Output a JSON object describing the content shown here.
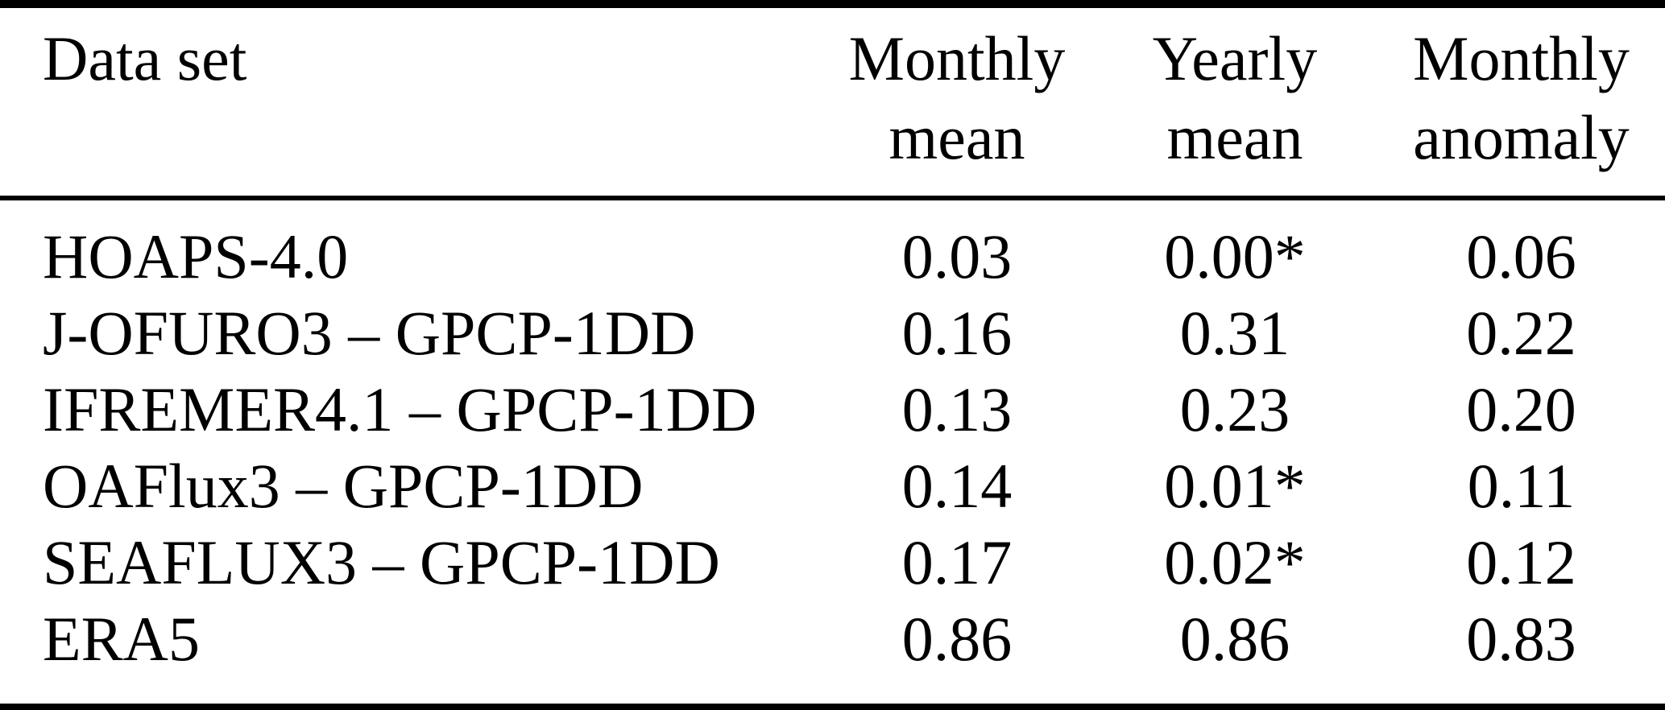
{
  "table": {
    "header": {
      "dataset": "Data set",
      "monthly_mean": [
        "Monthly",
        "mean"
      ],
      "yearly_mean": [
        "Yearly",
        "mean"
      ],
      "monthly_anomaly": [
        "Monthly",
        "anomaly"
      ]
    },
    "rows": [
      {
        "dataset": "HOAPS-4.0",
        "monthly_mean": "0.03",
        "yearly_mean": "0.00",
        "yearly_flag": "*",
        "monthly_anomaly": "0.06"
      },
      {
        "dataset": "J-OFURO3 – GPCP-1DD",
        "monthly_mean": "0.16",
        "yearly_mean": "0.31",
        "yearly_flag": "",
        "monthly_anomaly": "0.22"
      },
      {
        "dataset": "IFREMER4.1 – GPCP-1DD",
        "monthly_mean": "0.13",
        "yearly_mean": "0.23",
        "yearly_flag": "",
        "monthly_anomaly": "0.20"
      },
      {
        "dataset": "OAFlux3 – GPCP-1DD",
        "monthly_mean": "0.14",
        "yearly_mean": "0.01",
        "yearly_flag": "*",
        "monthly_anomaly": "0.11"
      },
      {
        "dataset": "SEAFLUX3 – GPCP-1DD",
        "monthly_mean": "0.17",
        "yearly_mean": "0.02",
        "yearly_flag": "*",
        "monthly_anomaly": "0.12"
      },
      {
        "dataset": "ERA5",
        "monthly_mean": "0.86",
        "yearly_mean": "0.86",
        "yearly_flag": "",
        "monthly_anomaly": "0.83"
      }
    ],
    "colors": {
      "text": "#000000",
      "background": "#ffffff",
      "rule": "#000000"
    }
  },
  "chart_data": {
    "type": "table",
    "columns": [
      "Data set",
      "Monthly mean",
      "Yearly mean",
      "Monthly anomaly"
    ],
    "rows": [
      [
        "HOAPS-4.0",
        "0.03",
        "0.00*",
        "0.06"
      ],
      [
        "J-OFURO3 – GPCP-1DD",
        "0.16",
        "0.31",
        "0.22"
      ],
      [
        "IFREMER4.1 – GPCP-1DD",
        "0.13",
        "0.23",
        "0.20"
      ],
      [
        "OAFlux3 – GPCP-1DD",
        "0.14",
        "0.01*",
        "0.11"
      ],
      [
        "SEAFLUX3 – GPCP-1DD",
        "0.17",
        "0.02*",
        "0.12"
      ],
      [
        "ERA5",
        "0.86",
        "0.86",
        "0.83"
      ]
    ]
  }
}
